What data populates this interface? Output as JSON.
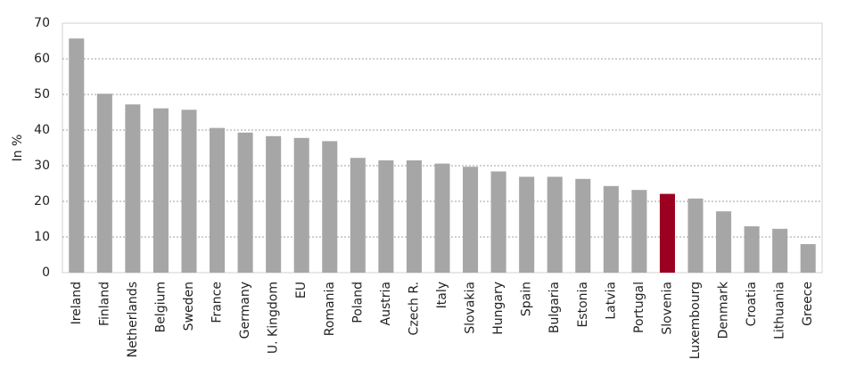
{
  "chart_data": {
    "type": "bar",
    "y_label": "In %",
    "categories": [
      "Ireland",
      "Finland",
      "Netherlands",
      "Belgium",
      "Sweden",
      "France",
      "Germany",
      "U. Kingdom",
      "EU",
      "Romania",
      "Poland",
      "Austria",
      "Czech R.",
      "Italy",
      "Slovakia",
      "Hungary",
      "Spain",
      "Bulgaria",
      "Estonia",
      "Latvia",
      "Portugal",
      "Slovenia",
      "Luxembourg",
      "Denmark",
      "Croatia",
      "Lithuania",
      "Greece"
    ],
    "values": [
      65.7,
      50.2,
      47.2,
      46.1,
      45.7,
      40.6,
      39.3,
      38.3,
      37.8,
      36.9,
      32.2,
      31.5,
      31.5,
      30.6,
      29.7,
      28.4,
      26.9,
      26.9,
      26.3,
      24.3,
      23.2,
      22.1,
      20.8,
      17.2,
      13.0,
      12.3,
      8.0
    ],
    "bar_colors": [
      "#a6a6a6",
      "#a6a6a6",
      "#a6a6a6",
      "#a6a6a6",
      "#a6a6a6",
      "#a6a6a6",
      "#a6a6a6",
      "#a6a6a6",
      "#a6a6a6",
      "#a6a6a6",
      "#a6a6a6",
      "#a6a6a6",
      "#a6a6a6",
      "#a6a6a6",
      "#a6a6a6",
      "#a6a6a6",
      "#a6a6a6",
      "#a6a6a6",
      "#a6a6a6",
      "#a6a6a6",
      "#a6a6a6",
      "#9b0020",
      "#a6a6a6",
      "#a6a6a6",
      "#a6a6a6",
      "#a6a6a6",
      "#a6a6a6"
    ],
    "ylim": [
      0,
      70
    ],
    "yticks": [
      0,
      10,
      20,
      30,
      40,
      50,
      60,
      70
    ],
    "grid": true
  }
}
